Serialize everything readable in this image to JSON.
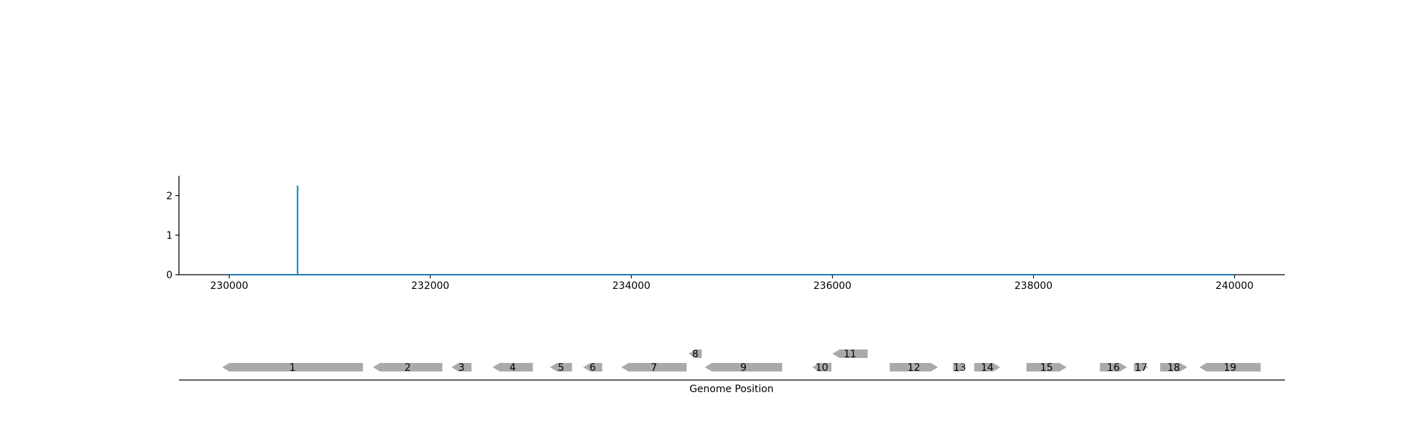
{
  "chart_data": [
    {
      "type": "line",
      "title": "",
      "xlabel": "",
      "ylabel": "",
      "xlim": [
        229500,
        240500
      ],
      "ylim": [
        0,
        2.5
      ],
      "x_ticks": [
        230000,
        232000,
        234000,
        236000,
        238000,
        240000
      ],
      "y_ticks": [
        0,
        1,
        2
      ],
      "series": [
        {
          "name": "",
          "color": "#1f77b4",
          "x": [
            230000,
            230680,
            230680,
            230680,
            240000
          ],
          "y": [
            0,
            0,
            2.25,
            0,
            0
          ]
        }
      ],
      "grid": false,
      "legend": "none"
    },
    {
      "type": "gene-map",
      "title": "",
      "xlabel": "Genome Position",
      "xlim": [
        229500,
        240500
      ],
      "feature_color": "#aaaaaa",
      "genes": [
        {
          "label": "1",
          "start": 229930,
          "end": 231330,
          "strand": -1,
          "row": 0
        },
        {
          "label": "2",
          "start": 231430,
          "end": 232120,
          "strand": -1,
          "row": 0
        },
        {
          "label": "3",
          "start": 232210,
          "end": 232410,
          "strand": -1,
          "row": 0
        },
        {
          "label": "4",
          "start": 232620,
          "end": 233020,
          "strand": -1,
          "row": 0
        },
        {
          "label": "5",
          "start": 233190,
          "end": 233410,
          "strand": -1,
          "row": 0
        },
        {
          "label": "6",
          "start": 233520,
          "end": 233710,
          "strand": -1,
          "row": 0
        },
        {
          "label": "7",
          "start": 233900,
          "end": 234550,
          "strand": -1,
          "row": 0
        },
        {
          "label": "8",
          "start": 234570,
          "end": 234700,
          "strand": -1,
          "row": 1
        },
        {
          "label": "9",
          "start": 234730,
          "end": 235500,
          "strand": -1,
          "row": 0
        },
        {
          "label": "10",
          "start": 235800,
          "end": 235990,
          "strand": -1,
          "row": 0
        },
        {
          "label": "11",
          "start": 236000,
          "end": 236350,
          "strand": -1,
          "row": 1
        },
        {
          "label": "12",
          "start": 236570,
          "end": 237050,
          "strand": 1,
          "row": 0
        },
        {
          "label": "13",
          "start": 237200,
          "end": 237330,
          "strand": 1,
          "row": 0
        },
        {
          "label": "14",
          "start": 237410,
          "end": 237670,
          "strand": 1,
          "row": 0
        },
        {
          "label": "15",
          "start": 237930,
          "end": 238330,
          "strand": 1,
          "row": 0
        },
        {
          "label": "16",
          "start": 238660,
          "end": 238930,
          "strand": 1,
          "row": 0
        },
        {
          "label": "17",
          "start": 239000,
          "end": 239140,
          "strand": 1,
          "row": 0
        },
        {
          "label": "18",
          "start": 239260,
          "end": 239530,
          "strand": 1,
          "row": 0
        },
        {
          "label": "19",
          "start": 239650,
          "end": 240260,
          "strand": -1,
          "row": 0
        }
      ]
    }
  ]
}
